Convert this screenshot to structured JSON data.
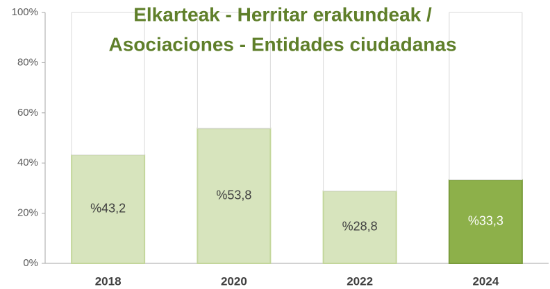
{
  "chart_data": {
    "type": "stacked_bar",
    "title": [
      "Elkarteak - Herritar erakundeak /",
      "Asociaciones - Entidades ciudadanas"
    ],
    "categories": [
      "2018",
      "2020",
      "2022",
      "2024"
    ],
    "series": [
      {
        "colors": [
          "#d7e4bd",
          "#d7e4bd",
          "#d7e4bd",
          "#8db04a"
        ],
        "label_colors": [
          "#404040",
          "#404040",
          "#404040",
          "#ffffff"
        ],
        "values": [
          43.2,
          53.8,
          28.8,
          33.3
        ],
        "value_labels": [
          "%43,2",
          "%53,8",
          "%28,8",
          "%33,3"
        ]
      },
      {
        "colors": [
          "#ffffff",
          "#ffffff",
          "#ffffff",
          "#ffffff"
        ],
        "values": [
          56.8,
          46.2,
          71.2,
          66.7
        ]
      }
    ],
    "ylim": [
      0,
      100
    ],
    "yticks": [
      {
        "value": 0,
        "label": "0%"
      },
      {
        "value": 20,
        "label": "20%"
      },
      {
        "value": 40,
        "label": "40%"
      },
      {
        "value": 60,
        "label": "60%"
      },
      {
        "value": 80,
        "label": "80%"
      },
      {
        "value": 100,
        "label": "100%"
      }
    ],
    "title_color": "#5f7f2a"
  }
}
